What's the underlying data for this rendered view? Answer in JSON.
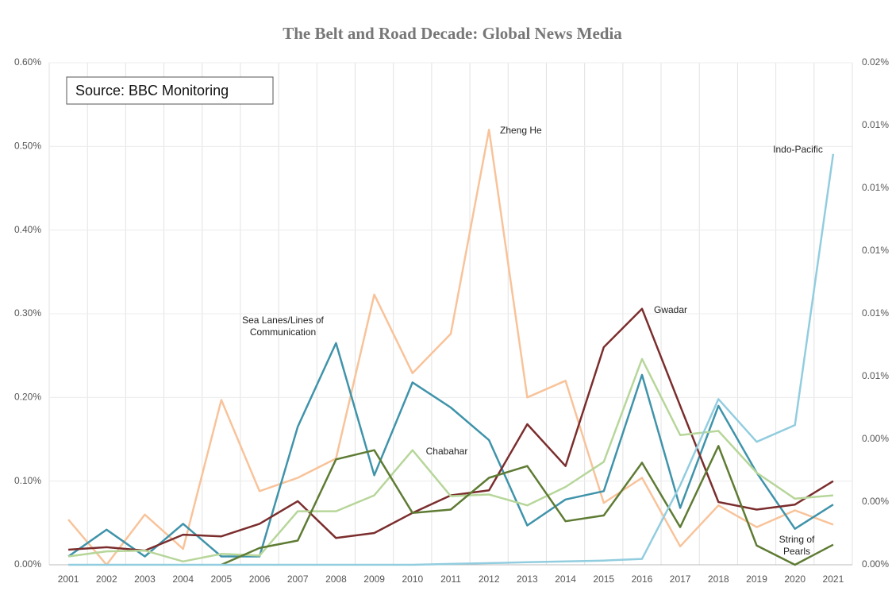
{
  "chart_data": {
    "type": "line",
    "title": "The Belt and Road Decade: Global News Media",
    "source": "Source: BBC Monitoring",
    "categories": [
      "2001",
      "2002",
      "2003",
      "2004",
      "2005",
      "2006",
      "2007",
      "2008",
      "2009",
      "2010",
      "2011",
      "2012",
      "2013",
      "2014",
      "2015",
      "2016",
      "2017",
      "2018",
      "2019",
      "2020",
      "2021"
    ],
    "series": [
      {
        "name": "Zheng He",
        "color": "#f8c39a",
        "values": [
          0.054,
          0,
          0.06,
          0.019,
          0.197,
          0.088,
          0.104,
          0.127,
          0.323,
          0.229,
          0.276,
          0.52,
          0.2,
          0.22,
          0.074,
          0.104,
          0.022,
          0.071,
          0.045,
          0.065,
          0.048
        ]
      },
      {
        "name": "Sea Lanes/Lines of Communication",
        "color": "#3f93aa",
        "values": [
          0.01,
          0.042,
          0.01,
          0.049,
          0.01,
          0.01,
          0.165,
          0.265,
          0.107,
          0.218,
          0.188,
          0.149,
          0.047,
          0.078,
          0.088,
          0.227,
          0.068,
          0.19,
          0.11,
          0.043,
          0.072
        ]
      },
      {
        "name": "Gwadar",
        "color": "#7b2d2d",
        "values": [
          0.018,
          0.021,
          0.017,
          0.036,
          0.034,
          0.049,
          0.076,
          0.032,
          0.038,
          0.062,
          0.083,
          0.089,
          0.168,
          0.118,
          0.26,
          0.306,
          0.19,
          0.075,
          0.066,
          0.072,
          0.1
        ]
      },
      {
        "name": "Chabahar",
        "color": "#b7d69a",
        "values": [
          0.01,
          0.016,
          0.017,
          0.004,
          0.013,
          0.011,
          0.064,
          0.064,
          0.083,
          0.137,
          0.082,
          0.084,
          0.071,
          0.093,
          0.123,
          0.246,
          0.155,
          0.16,
          0.11,
          0.079,
          0.083
        ]
      },
      {
        "name": "String of Pearls",
        "color": "#5e7b33",
        "values": [
          null,
          null,
          null,
          null,
          0,
          0.02,
          0.029,
          0.126,
          0.137,
          0.062,
          0.066,
          0.104,
          0.118,
          0.052,
          0.059,
          0.122,
          0.045,
          0.142,
          0.023,
          0,
          0.024
        ]
      },
      {
        "name": "Indo-Pacific",
        "color": "#92cddf",
        "values": [
          0,
          0,
          0,
          0,
          0,
          0,
          0,
          0,
          0,
          0,
          0.001,
          0.002,
          0.003,
          0.004,
          0.005,
          0.007,
          0.095,
          0.198,
          0.147,
          0.167,
          0.491
        ]
      }
    ],
    "ylim": [
      0,
      0.6
    ],
    "yticks": [
      {
        "value": 0,
        "label": "0.00%"
      },
      {
        "value": 0.1,
        "label": "0.10%"
      },
      {
        "value": 0.2,
        "label": "0.20%"
      },
      {
        "value": 0.3,
        "label": "0.30%"
      },
      {
        "value": 0.4,
        "label": "0.40%"
      },
      {
        "value": 0.5,
        "label": "0.50%"
      },
      {
        "value": 0.6,
        "label": "0.60%"
      }
    ],
    "y2lim": [
      0,
      0.02
    ],
    "y2ticks": [
      {
        "value": 0,
        "label": "0.00%"
      },
      {
        "value": 0.0025,
        "label": "0.00%"
      },
      {
        "value": 0.005,
        "label": "0.00%"
      },
      {
        "value": 0.0075,
        "label": "0.01%"
      },
      {
        "value": 0.01,
        "label": "0.01%"
      },
      {
        "value": 0.0125,
        "label": "0.01%"
      },
      {
        "value": 0.015,
        "label": "0.01%"
      },
      {
        "value": 0.0175,
        "label": "0.01%"
      },
      {
        "value": 0.02,
        "label": "0.02%"
      }
    ],
    "grid": true
  }
}
